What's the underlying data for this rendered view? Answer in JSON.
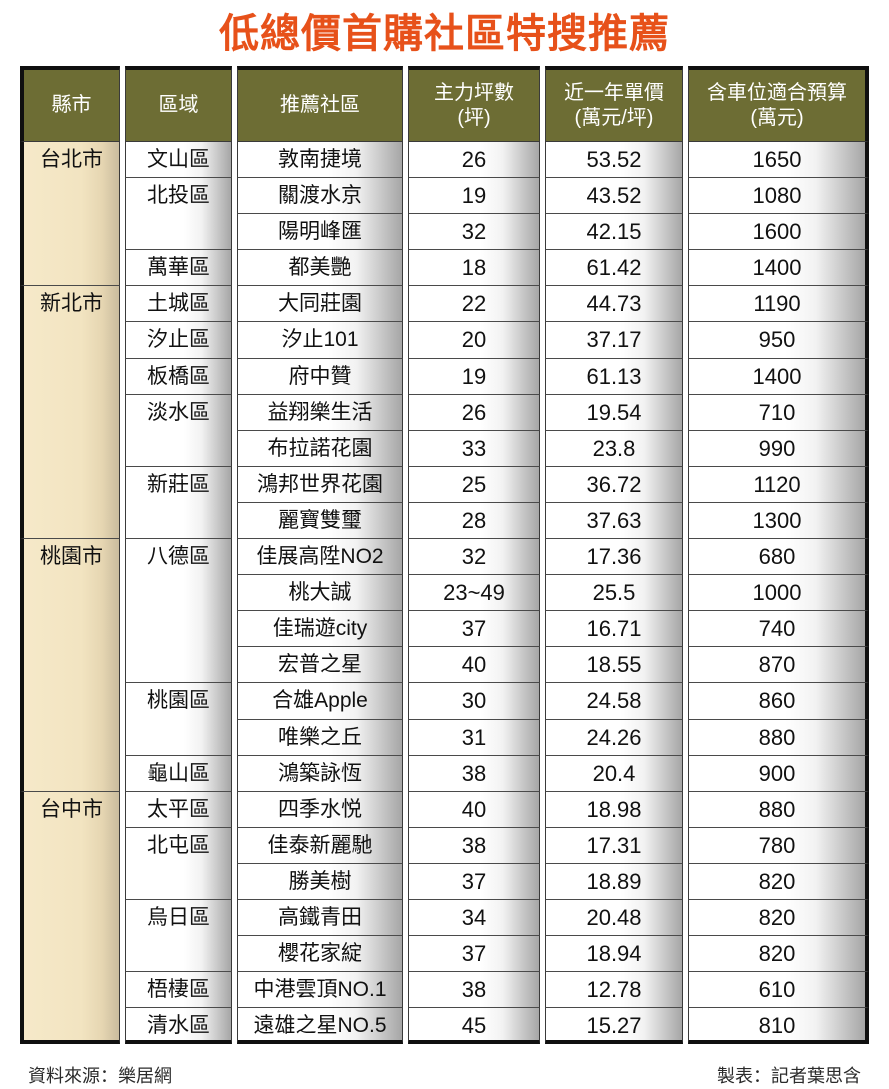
{
  "title": "低總價首購社區特搜推薦",
  "colors": {
    "title": "#e7511a",
    "header_bg": "#6d6d34",
    "header_text": "#ffffff",
    "city_column_bg": "#f4e6c3",
    "outer_border": "#101010"
  },
  "table": {
    "headers": [
      {
        "line1": "縣市",
        "line2": ""
      },
      {
        "line1": "區域",
        "line2": ""
      },
      {
        "line1": "推薦社區",
        "line2": ""
      },
      {
        "line1": "主力坪數",
        "line2": "(坪)"
      },
      {
        "line1": "近一年單價",
        "line2": "(萬元/坪)"
      },
      {
        "line1": "含車位適合預算",
        "line2": "(萬元)"
      }
    ],
    "groups": [
      {
        "city": "台北市",
        "districts": [
          {
            "name": "文山區",
            "items": [
              {
                "community": "敦南捷境",
                "size": "26",
                "price": "53.52",
                "budget": "1650"
              }
            ]
          },
          {
            "name": "北投區",
            "items": [
              {
                "community": "關渡水京",
                "size": "19",
                "price": "43.52",
                "budget": "1080"
              },
              {
                "community": "陽明峰匯",
                "size": "32",
                "price": "42.15",
                "budget": "1600"
              }
            ]
          },
          {
            "name": "萬華區",
            "items": [
              {
                "community": "都美艷",
                "size": "18",
                "price": "61.42",
                "budget": "1400"
              }
            ]
          }
        ]
      },
      {
        "city": "新北市",
        "districts": [
          {
            "name": "土城區",
            "items": [
              {
                "community": "大同莊園",
                "size": "22",
                "price": "44.73",
                "budget": "1190"
              }
            ]
          },
          {
            "name": "汐止區",
            "items": [
              {
                "community": "汐止101",
                "size": "20",
                "price": "37.17",
                "budget": "950"
              }
            ]
          },
          {
            "name": "板橋區",
            "items": [
              {
                "community": "府中贊",
                "size": "19",
                "price": "61.13",
                "budget": "1400"
              }
            ]
          },
          {
            "name": "淡水區",
            "items": [
              {
                "community": "益翔樂生活",
                "size": "26",
                "price": "19.54",
                "budget": "710"
              },
              {
                "community": "布拉諾花園",
                "size": "33",
                "price": "23.8",
                "budget": "990"
              }
            ]
          },
          {
            "name": "新莊區",
            "items": [
              {
                "community": "鴻邦世界花園",
                "size": "25",
                "price": "36.72",
                "budget": "1120"
              },
              {
                "community": "麗寶雙璽",
                "size": "28",
                "price": "37.63",
                "budget": "1300"
              }
            ]
          }
        ]
      },
      {
        "city": "桃園市",
        "districts": [
          {
            "name": "八德區",
            "items": [
              {
                "community": "佳展高陞NO2",
                "size": "32",
                "price": "17.36",
                "budget": "680"
              },
              {
                "community": "桃大誠",
                "size": "23~49",
                "price": "25.5",
                "budget": "1000"
              },
              {
                "community": "佳瑞遊city",
                "size": "37",
                "price": "16.71",
                "budget": "740"
              },
              {
                "community": "宏普之星",
                "size": "40",
                "price": "18.55",
                "budget": "870"
              }
            ]
          },
          {
            "name": "桃園區",
            "items": [
              {
                "community": "合雄Apple",
                "size": "30",
                "price": "24.58",
                "budget": "860"
              },
              {
                "community": "唯樂之丘",
                "size": "31",
                "price": "24.26",
                "budget": "880"
              }
            ]
          },
          {
            "name": "龜山區",
            "items": [
              {
                "community": "鴻築詠恆",
                "size": "38",
                "price": "20.4",
                "budget": "900"
              }
            ]
          }
        ]
      },
      {
        "city": "台中市",
        "districts": [
          {
            "name": "太平區",
            "items": [
              {
                "community": "四季水悦",
                "size": "40",
                "price": "18.98",
                "budget": "880"
              }
            ]
          },
          {
            "name": "北屯區",
            "items": [
              {
                "community": "佳泰新麗馳",
                "size": "38",
                "price": "17.31",
                "budget": "780"
              },
              {
                "community": "勝美樹",
                "size": "37",
                "price": "18.89",
                "budget": "820"
              }
            ]
          },
          {
            "name": "烏日區",
            "items": [
              {
                "community": "高鐵青田",
                "size": "34",
                "price": "20.48",
                "budget": "820"
              },
              {
                "community": "櫻花家綻",
                "size": "37",
                "price": "18.94",
                "budget": "820"
              }
            ]
          },
          {
            "name": "梧棲區",
            "items": [
              {
                "community": "中港雲頂NO.1",
                "size": "38",
                "price": "12.78",
                "budget": "610"
              }
            ]
          },
          {
            "name": "清水區",
            "items": [
              {
                "community": "遠雄之星NO.5",
                "size": "45",
                "price": "15.27",
                "budget": "810"
              }
            ]
          }
        ]
      }
    ]
  },
  "chart_data": {
    "type": "table",
    "title": "低總價首購社區特搜推薦",
    "columns": [
      "縣市",
      "區域",
      "推薦社區",
      "主力坪數(坪)",
      "近一年單價(萬元/坪)",
      "含車位適合預算(萬元)"
    ],
    "rows": [
      [
        "台北市",
        "文山區",
        "敦南捷境",
        "26",
        "53.52",
        "1650"
      ],
      [
        "台北市",
        "北投區",
        "關渡水京",
        "19",
        "43.52",
        "1080"
      ],
      [
        "台北市",
        "北投區",
        "陽明峰匯",
        "32",
        "42.15",
        "1600"
      ],
      [
        "台北市",
        "萬華區",
        "都美艷",
        "18",
        "61.42",
        "1400"
      ],
      [
        "新北市",
        "土城區",
        "大同莊園",
        "22",
        "44.73",
        "1190"
      ],
      [
        "新北市",
        "汐止區",
        "汐止101",
        "20",
        "37.17",
        "950"
      ],
      [
        "新北市",
        "板橋區",
        "府中贊",
        "19",
        "61.13",
        "1400"
      ],
      [
        "新北市",
        "淡水區",
        "益翔樂生活",
        "26",
        "19.54",
        "710"
      ],
      [
        "新北市",
        "淡水區",
        "布拉諾花園",
        "33",
        "23.8",
        "990"
      ],
      [
        "新北市",
        "新莊區",
        "鴻邦世界花園",
        "25",
        "36.72",
        "1120"
      ],
      [
        "新北市",
        "新莊區",
        "麗寶雙璽",
        "28",
        "37.63",
        "1300"
      ],
      [
        "桃園市",
        "八德區",
        "佳展高陞NO2",
        "32",
        "17.36",
        "680"
      ],
      [
        "桃園市",
        "八德區",
        "桃大誠",
        "23~49",
        "25.5",
        "1000"
      ],
      [
        "桃園市",
        "八德區",
        "佳瑞遊city",
        "37",
        "16.71",
        "740"
      ],
      [
        "桃園市",
        "八德區",
        "宏普之星",
        "40",
        "18.55",
        "870"
      ],
      [
        "桃園市",
        "桃園區",
        "合雄Apple",
        "30",
        "24.58",
        "860"
      ],
      [
        "桃園市",
        "桃園區",
        "唯樂之丘",
        "31",
        "24.26",
        "880"
      ],
      [
        "桃園市",
        "龜山區",
        "鴻築詠恆",
        "38",
        "20.4",
        "900"
      ],
      [
        "台中市",
        "太平區",
        "四季水悦",
        "40",
        "18.98",
        "880"
      ],
      [
        "台中市",
        "北屯區",
        "佳泰新麗馳",
        "38",
        "17.31",
        "780"
      ],
      [
        "台中市",
        "北屯區",
        "勝美樹",
        "37",
        "18.89",
        "820"
      ],
      [
        "台中市",
        "烏日區",
        "高鐵青田",
        "34",
        "20.48",
        "820"
      ],
      [
        "台中市",
        "烏日區",
        "櫻花家綻",
        "37",
        "18.94",
        "820"
      ],
      [
        "台中市",
        "梧棲區",
        "中港雲頂NO.1",
        "38",
        "12.78",
        "610"
      ],
      [
        "台中市",
        "清水區",
        "遠雄之星NO.5",
        "45",
        "15.27",
        "810"
      ]
    ]
  },
  "footer": {
    "source": "資料來源：樂居網",
    "credit": "製表：記者葉思含"
  }
}
